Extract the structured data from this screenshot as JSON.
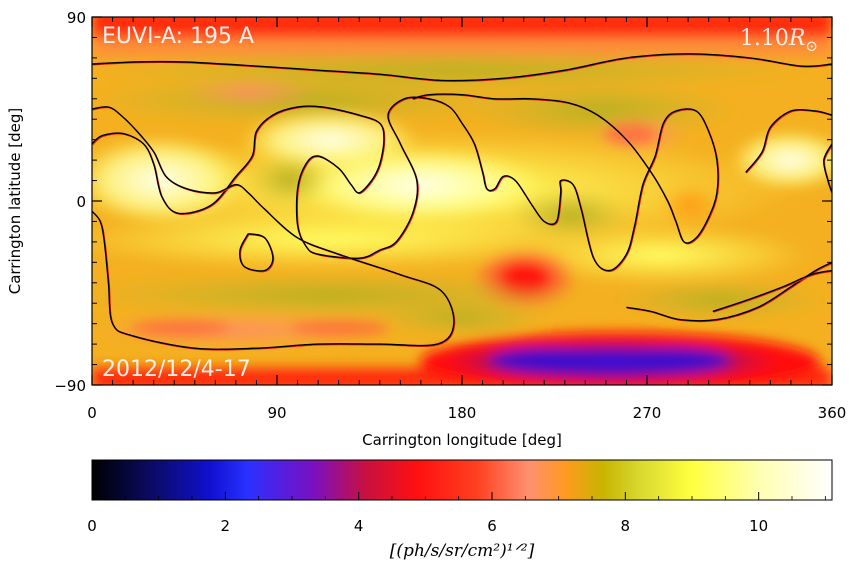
{
  "chart_data": {
    "type": "heatmap",
    "title": "EUVI-A: 195 A",
    "radius_label_main": "1.10",
    "radius_label_var": "R",
    "radius_label_sub": "⊙",
    "date_label": "2012/12/4-17",
    "xlabel": "Carrington longitude [deg]",
    "ylabel": "Carrington latitude [deg]",
    "xlim": [
      0,
      360
    ],
    "ylim": [
      -90,
      90
    ],
    "x_ticks": [
      {
        "value": 0,
        "label": "0"
      },
      {
        "value": 90,
        "label": "90"
      },
      {
        "value": 180,
        "label": "180"
      },
      {
        "value": 270,
        "label": "270"
      },
      {
        "value": 360,
        "label": "360"
      }
    ],
    "y_ticks": [
      {
        "value": 90,
        "label": "90"
      },
      {
        "value": 0,
        "label": "0"
      },
      {
        "value": -90,
        "label": "−90"
      }
    ],
    "colorbar": {
      "range": [
        0,
        11.1
      ],
      "ticks": [
        {
          "value": 0,
          "label": "0"
        },
        {
          "value": 2,
          "label": "2"
        },
        {
          "value": 4,
          "label": "4"
        },
        {
          "value": 6,
          "label": "6"
        },
        {
          "value": 8,
          "label": "8"
        },
        {
          "value": 10,
          "label": "10"
        }
      ],
      "unit_label": "[(ph/s/sr/cm²)¹ᐟ²]",
      "colors": [
        "#000000",
        "#0000ff",
        "#ff0000",
        "#ffff33",
        "#ffffff"
      ]
    },
    "grid": false,
    "contour_color": "#000000",
    "contour_alt_color": "#e02020",
    "contours": [
      {
        "name": "north",
        "points": [
          [
            0,
            67
          ],
          [
            20,
            68
          ],
          [
            45,
            68
          ],
          [
            80,
            66
          ],
          [
            110,
            64
          ],
          [
            140,
            62
          ],
          [
            170,
            59
          ],
          [
            200,
            60
          ],
          [
            230,
            64
          ],
          [
            260,
            70
          ],
          [
            290,
            72
          ],
          [
            320,
            70
          ],
          [
            345,
            66
          ],
          [
            360,
            67
          ]
        ]
      },
      {
        "name": "main",
        "points": [
          [
            0,
            28
          ],
          [
            5,
            32
          ],
          [
            15,
            33
          ],
          [
            25,
            28
          ],
          [
            30,
            18
          ],
          [
            34,
            2
          ],
          [
            42,
            -6
          ],
          [
            58,
            -2
          ],
          [
            70,
            12
          ],
          [
            78,
            22
          ],
          [
            80,
            34
          ],
          [
            88,
            42
          ],
          [
            100,
            46
          ],
          [
            112,
            46
          ],
          [
            130,
            42
          ],
          [
            140,
            38
          ],
          [
            142,
            30
          ],
          [
            140,
            18
          ],
          [
            136,
            10
          ],
          [
            130,
            4
          ],
          [
            126,
            8
          ],
          [
            120,
            16
          ],
          [
            110,
            22
          ],
          [
            104,
            18
          ],
          [
            100,
            6
          ],
          [
            100,
            -12
          ],
          [
            104,
            -22
          ],
          [
            110,
            -26
          ],
          [
            130,
            -28
          ],
          [
            140,
            -24
          ],
          [
            148,
            -20
          ],
          [
            156,
            -6
          ],
          [
            158,
            10
          ],
          [
            150,
            28
          ],
          [
            144,
            42
          ],
          [
            152,
            50
          ],
          [
            164,
            50
          ],
          [
            174,
            46
          ],
          [
            180,
            38
          ],
          [
            186,
            28
          ],
          [
            190,
            14
          ],
          [
            192,
            6
          ],
          [
            196,
            6
          ],
          [
            200,
            12
          ],
          [
            206,
            10
          ],
          [
            214,
            -2
          ],
          [
            220,
            -10
          ],
          [
            226,
            -10
          ],
          [
            228,
            4
          ],
          [
            228,
            10
          ],
          [
            234,
            8
          ],
          [
            238,
            -4
          ],
          [
            244,
            -28
          ],
          [
            252,
            -34
          ],
          [
            260,
            -26
          ],
          [
            264,
            -12
          ],
          [
            268,
            8
          ],
          [
            274,
            22
          ],
          [
            278,
            38
          ],
          [
            284,
            44
          ],
          [
            294,
            44
          ],
          [
            300,
            34
          ],
          [
            304,
            20
          ],
          [
            304,
            4
          ],
          [
            300,
            -8
          ],
          [
            294,
            -18
          ],
          [
            288,
            -20
          ],
          [
            284,
            -10
          ],
          [
            280,
            0
          ],
          [
            272,
            14
          ],
          [
            260,
            30
          ],
          [
            246,
            42
          ],
          [
            232,
            48
          ],
          [
            214,
            50
          ],
          [
            196,
            50
          ],
          [
            180,
            52
          ],
          [
            164,
            52
          ],
          [
            156,
            50
          ]
        ]
      },
      {
        "name": "west",
        "points": [
          [
            0,
            45
          ],
          [
            8,
            46
          ],
          [
            14,
            42
          ],
          [
            22,
            34
          ],
          [
            30,
            24
          ],
          [
            36,
            12
          ],
          [
            46,
            6
          ],
          [
            60,
            4
          ],
          [
            70,
            8
          ],
          [
            76,
            4
          ],
          [
            84,
            -4
          ],
          [
            100,
            -18
          ],
          [
            120,
            -26
          ],
          [
            150,
            -36
          ],
          [
            170,
            -44
          ],
          [
            176,
            -60
          ],
          [
            168,
            -70
          ],
          [
            140,
            -70
          ],
          [
            110,
            -70
          ],
          [
            80,
            -72
          ],
          [
            50,
            -72
          ],
          [
            20,
            -66
          ],
          [
            10,
            -60
          ],
          [
            8,
            -40
          ],
          [
            6,
            -20
          ],
          [
            4,
            -10
          ],
          [
            0,
            -5
          ]
        ]
      },
      {
        "name": "blob",
        "points": [
          [
            76,
            -16
          ],
          [
            84,
            -18
          ],
          [
            88,
            -28
          ],
          [
            84,
            -34
          ],
          [
            74,
            -32
          ],
          [
            72,
            -24
          ],
          [
            76,
            -16
          ]
        ]
      },
      {
        "name": "east",
        "points": [
          [
            260,
            -52
          ],
          [
            272,
            -54
          ],
          [
            286,
            -58
          ],
          [
            304,
            -58
          ],
          [
            324,
            -52
          ],
          [
            340,
            -42
          ],
          [
            352,
            -34
          ],
          [
            360,
            -30
          ]
        ]
      },
      {
        "name": "east2",
        "points": [
          [
            302,
            -54
          ],
          [
            320,
            -48
          ],
          [
            336,
            -42
          ],
          [
            350,
            -36
          ],
          [
            360,
            -34
          ]
        ]
      },
      {
        "name": "right-edge",
        "points": [
          [
            360,
            28
          ],
          [
            356,
            20
          ],
          [
            358,
            10
          ],
          [
            360,
            4
          ]
        ]
      },
      {
        "name": "right-top",
        "points": [
          [
            318,
            14
          ],
          [
            326,
            24
          ],
          [
            330,
            36
          ],
          [
            340,
            44
          ],
          [
            352,
            44
          ],
          [
            360,
            42
          ]
        ]
      }
    ]
  }
}
